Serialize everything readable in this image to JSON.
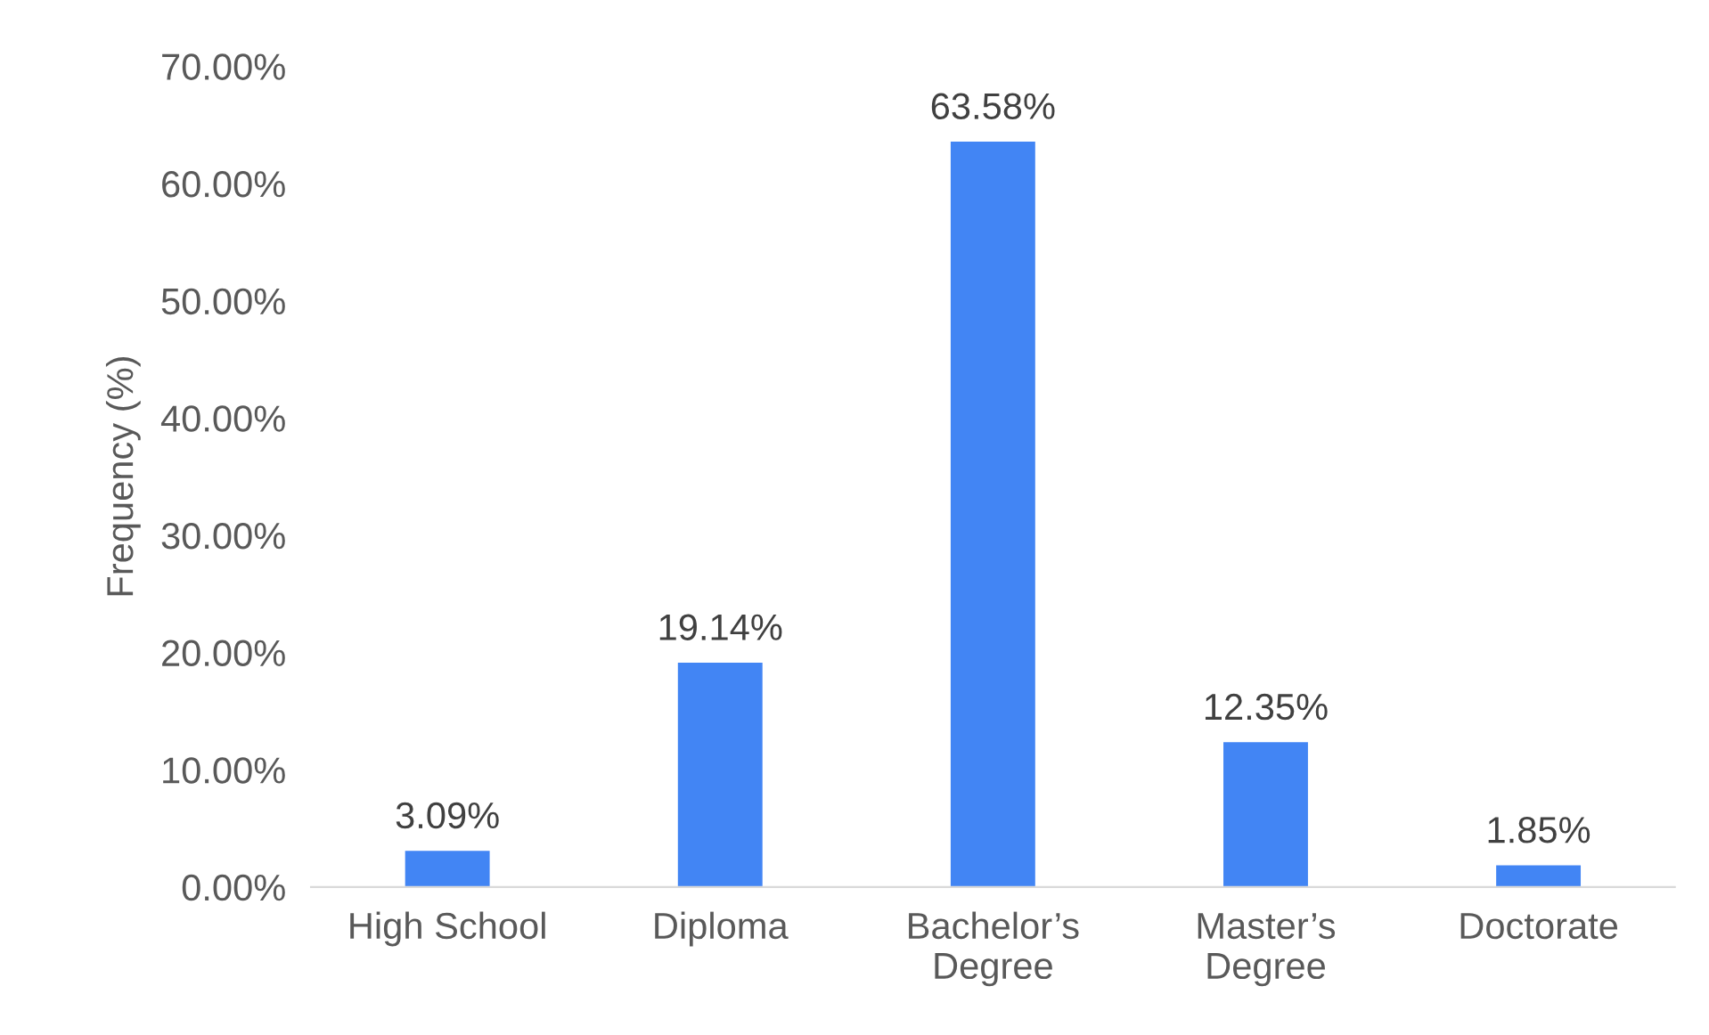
{
  "chart_data": {
    "type": "bar",
    "ylabel": "Frequency (%)",
    "categories": [
      "High School",
      "Diploma",
      "Bachelor’s\nDegree",
      "Master’s\nDegree",
      "Doctorate"
    ],
    "values": [
      3.09,
      19.14,
      63.58,
      12.35,
      1.85
    ],
    "value_labels": [
      "3.09%",
      "19.14%",
      "63.58%",
      "12.35%",
      "1.85%"
    ],
    "color": "#4285f4",
    "ylim": [
      0,
      70
    ],
    "yticks": [
      {
        "value": 0,
        "label": "0.00%"
      },
      {
        "value": 10,
        "label": "10.00%"
      },
      {
        "value": 20,
        "label": "20.00%"
      },
      {
        "value": 30,
        "label": "30.00%"
      },
      {
        "value": 40,
        "label": "40.00%"
      },
      {
        "value": 50,
        "label": "50.00%"
      },
      {
        "value": 60,
        "label": "60.00%"
      },
      {
        "value": 70,
        "label": "70.00%"
      }
    ],
    "grid": false,
    "legend": false
  }
}
